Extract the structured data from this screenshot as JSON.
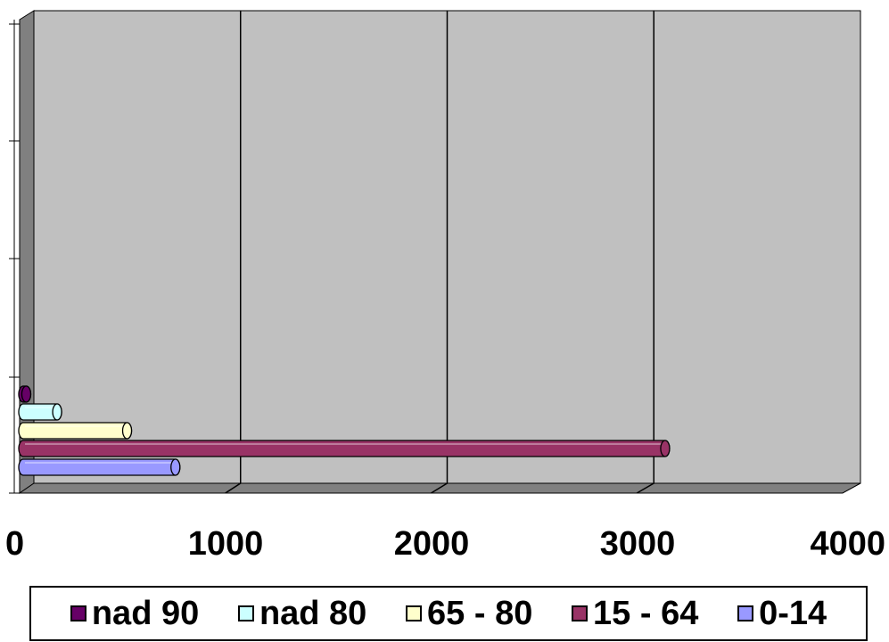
{
  "chart_data": {
    "type": "bar",
    "orientation": "horizontal",
    "style": "3d-cylinder",
    "title": "",
    "xlabel": "",
    "ylabel": "",
    "xlim": [
      0,
      4000
    ],
    "x_ticks": [
      "0",
      "1000",
      "2000",
      "3000",
      "4000"
    ],
    "grid": true,
    "legend_position": "bottom",
    "series": [
      {
        "name": "nad 90",
        "value": 15,
        "color": "#660066"
      },
      {
        "name": "nad 80",
        "value": 165,
        "color": "#ccffff"
      },
      {
        "name": "65 - 80",
        "value": 505,
        "color": "#ffffcc"
      },
      {
        "name": "15 - 64",
        "value": 3120,
        "color": "#993366"
      },
      {
        "name": "0-14",
        "value": 740,
        "color": "#9999ff"
      }
    ],
    "colors": {
      "back_wall": "#c0c0c0",
      "side_wall": "#808080",
      "floor": "#808080"
    }
  }
}
